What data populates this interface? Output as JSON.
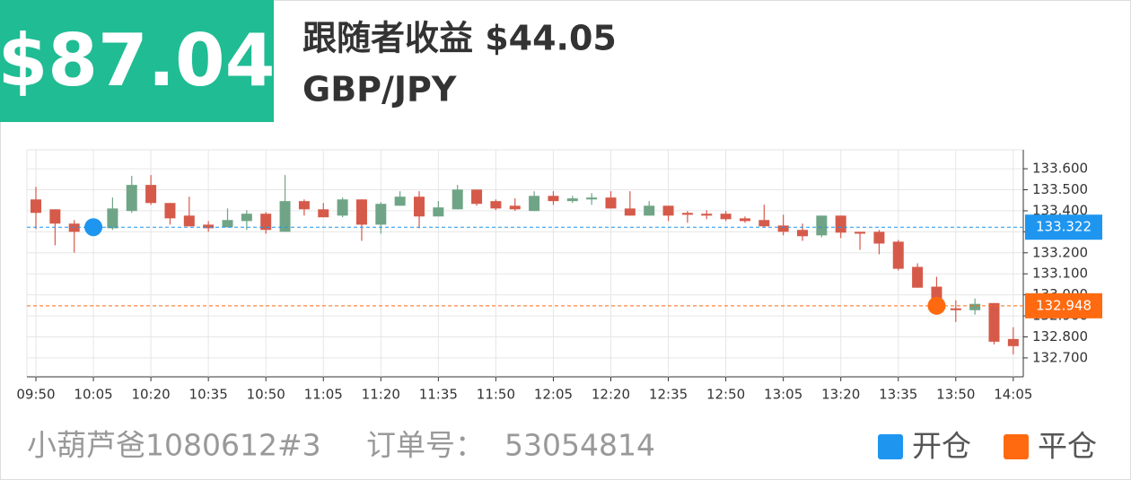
{
  "header": {
    "profit": "$87.04",
    "follower_profit": "跟随者收益 $44.05",
    "pair": "GBP/JPY"
  },
  "chart_data": {
    "type": "candlestick",
    "categories": [
      "09:50",
      null,
      null,
      "10:05",
      null,
      null,
      "10:20",
      null,
      null,
      "10:35",
      null,
      null,
      "10:50",
      null,
      null,
      "11:05",
      null,
      null,
      "11:20",
      null,
      null,
      "11:35",
      null,
      null,
      "11:50",
      null,
      null,
      "12:05",
      null,
      null,
      "12:20",
      null,
      null,
      "12:35",
      null,
      null,
      "12:50",
      null,
      null,
      "13:05",
      null,
      null,
      "13:20",
      null,
      null,
      "13:35",
      null,
      null,
      "13:50",
      null,
      null,
      "14:05"
    ],
    "open": [
      133.454,
      133.407,
      133.339,
      133.31,
      133.317,
      133.399,
      133.523,
      133.437,
      133.377,
      133.334,
      133.321,
      133.351,
      133.386,
      133.3,
      133.446,
      133.407,
      133.377,
      133.454,
      133.334,
      133.424,
      133.467,
      133.373,
      133.407,
      133.501,
      133.446,
      133.424,
      133.399,
      133.471,
      133.446,
      133.454,
      133.463,
      133.411,
      133.377,
      133.424,
      133.39,
      133.386,
      133.386,
      133.364,
      133.356,
      133.33,
      133.309,
      133.283,
      133.377,
      133.3,
      133.3,
      133.253,
      133.133,
      133.039,
      132.936,
      132.927,
      132.961,
      132.79
    ],
    "high": [
      133.514,
      133.407,
      133.356,
      133.35,
      133.463,
      133.566,
      133.57,
      133.437,
      133.467,
      133.351,
      133.411,
      133.403,
      133.394,
      133.57,
      133.454,
      133.437,
      133.463,
      133.454,
      133.441,
      133.493,
      133.493,
      133.446,
      133.523,
      133.501,
      133.454,
      133.459,
      133.493,
      133.493,
      133.471,
      133.484,
      133.493,
      133.493,
      133.446,
      133.424,
      133.399,
      133.403,
      133.399,
      133.373,
      133.429,
      133.381,
      133.339,
      133.377,
      133.377,
      133.3,
      133.309,
      133.261,
      133.15,
      133.086,
      132.974,
      132.983,
      132.961,
      132.846
    ],
    "low": [
      133.313,
      133.236,
      133.201,
      133.3,
      133.309,
      133.39,
      133.428,
      133.334,
      133.326,
      133.3,
      133.321,
      133.309,
      133.291,
      133.3,
      133.377,
      133.369,
      133.369,
      133.257,
      133.291,
      133.424,
      133.317,
      133.373,
      133.407,
      133.424,
      133.403,
      133.399,
      133.399,
      133.428,
      133.437,
      133.428,
      133.411,
      133.377,
      133.377,
      133.351,
      133.343,
      133.36,
      133.351,
      133.343,
      133.321,
      133.283,
      133.257,
      133.274,
      133.27,
      133.214,
      133.193,
      133.116,
      133.034,
      132.927,
      132.871,
      132.906,
      132.764,
      132.717
    ],
    "close": [
      133.39,
      133.339,
      133.3,
      133.33,
      133.411,
      133.523,
      133.437,
      133.364,
      133.326,
      133.317,
      133.356,
      133.386,
      133.309,
      133.446,
      133.407,
      133.369,
      133.454,
      133.334,
      133.433,
      133.467,
      133.373,
      133.416,
      133.501,
      133.433,
      133.411,
      133.407,
      133.471,
      133.446,
      133.459,
      133.463,
      133.411,
      133.377,
      133.424,
      133.377,
      133.381,
      133.377,
      133.36,
      133.351,
      133.326,
      133.3,
      133.279,
      133.377,
      133.296,
      133.291,
      133.244,
      133.124,
      133.034,
      132.953,
      132.927,
      132.957,
      132.777,
      132.756
    ],
    "up_color": "#6fa586",
    "down_color": "#d65a4a",
    "ylim": [
      132.61,
      133.69
    ],
    "yticks": [
      {
        "value": 132.7,
        "label": "132.700"
      },
      {
        "value": 132.8,
        "label": "132.800"
      },
      {
        "value": 132.9,
        "label": "132.900"
      },
      {
        "value": 133.0,
        "label": "133.000"
      },
      {
        "value": 133.1,
        "label": "133.100"
      },
      {
        "value": 133.2,
        "label": "133.200"
      },
      {
        "value": 133.3,
        "label": "133.300"
      },
      {
        "value": 133.4,
        "label": "133.400"
      },
      {
        "value": 133.5,
        "label": "133.500"
      },
      {
        "value": 133.6,
        "label": "133.600"
      }
    ],
    "grid": true,
    "position_lines": [
      {
        "name": "开仓",
        "color": "#1e96f0",
        "value": 133.322,
        "time": "10:05"
      },
      {
        "name": "平仓",
        "color": "#ff6a10",
        "value": 132.948,
        "time": "13:45"
      }
    ]
  },
  "footer": {
    "user": "小葫芦爸1080612#3",
    "order_label": "订单号：",
    "order_no": "53054814"
  }
}
